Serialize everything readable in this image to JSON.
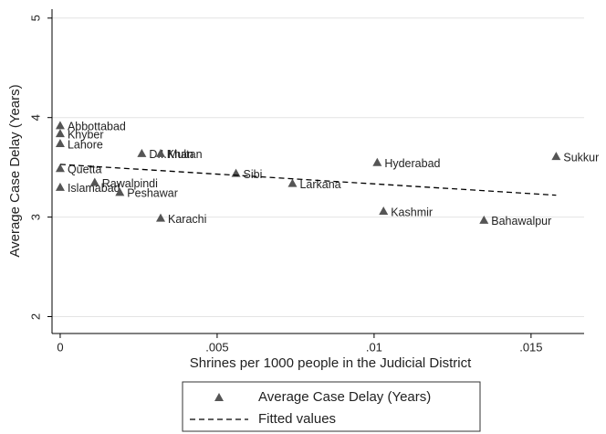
{
  "chart_data": {
    "type": "scatter",
    "xlabel": "Shrines per 1000 people in the Judicial District",
    "ylabel": "Average Case Delay (Years)",
    "xlim": [
      -0.00026,
      0.01669
    ],
    "xticks": [
      0,
      {
        "value": 0.005,
        "label": ".005"
      },
      {
        "value": 0.01,
        "label": ".01"
      },
      {
        "value": 0.015,
        "label": ".015"
      }
    ],
    "ylim": [
      1.83,
      5.09
    ],
    "yticks": [
      2,
      3,
      4,
      5
    ],
    "grid": true,
    "series": [
      {
        "name": "Average Case Delay (Years)",
        "color": "#555555",
        "marker": "triangle",
        "x": [
          0,
          0,
          0,
          0,
          0,
          0.0011,
          0.0019,
          0.0026,
          0.0032,
          0.0032,
          0.0056,
          0.0074,
          0.0101,
          0.0103,
          0.0135,
          0.0158
        ],
        "values": [
          3.92,
          3.84,
          3.74,
          3.49,
          3.3,
          3.35,
          3.25,
          3.64,
          3.64,
          2.99,
          3.44,
          3.34,
          3.55,
          3.06,
          2.97,
          3.61
        ],
        "labels": [
          "Abbottabad",
          "Khyber",
          "Lahore",
          "Quetta",
          "Islamabad",
          "Rawalpindi",
          "Peshawar",
          "D.I.Khan",
          "Multan",
          "Karachi",
          "Sibi",
          "Larkana",
          "Hyderabad",
          "Kashmir",
          "Bahawalpur",
          "Sukkur"
        ]
      },
      {
        "name": "Fitted values",
        "color": "#000000",
        "dash": true,
        "x": [
          0,
          0.0158
        ],
        "values": [
          3.53,
          3.22
        ]
      }
    ]
  }
}
